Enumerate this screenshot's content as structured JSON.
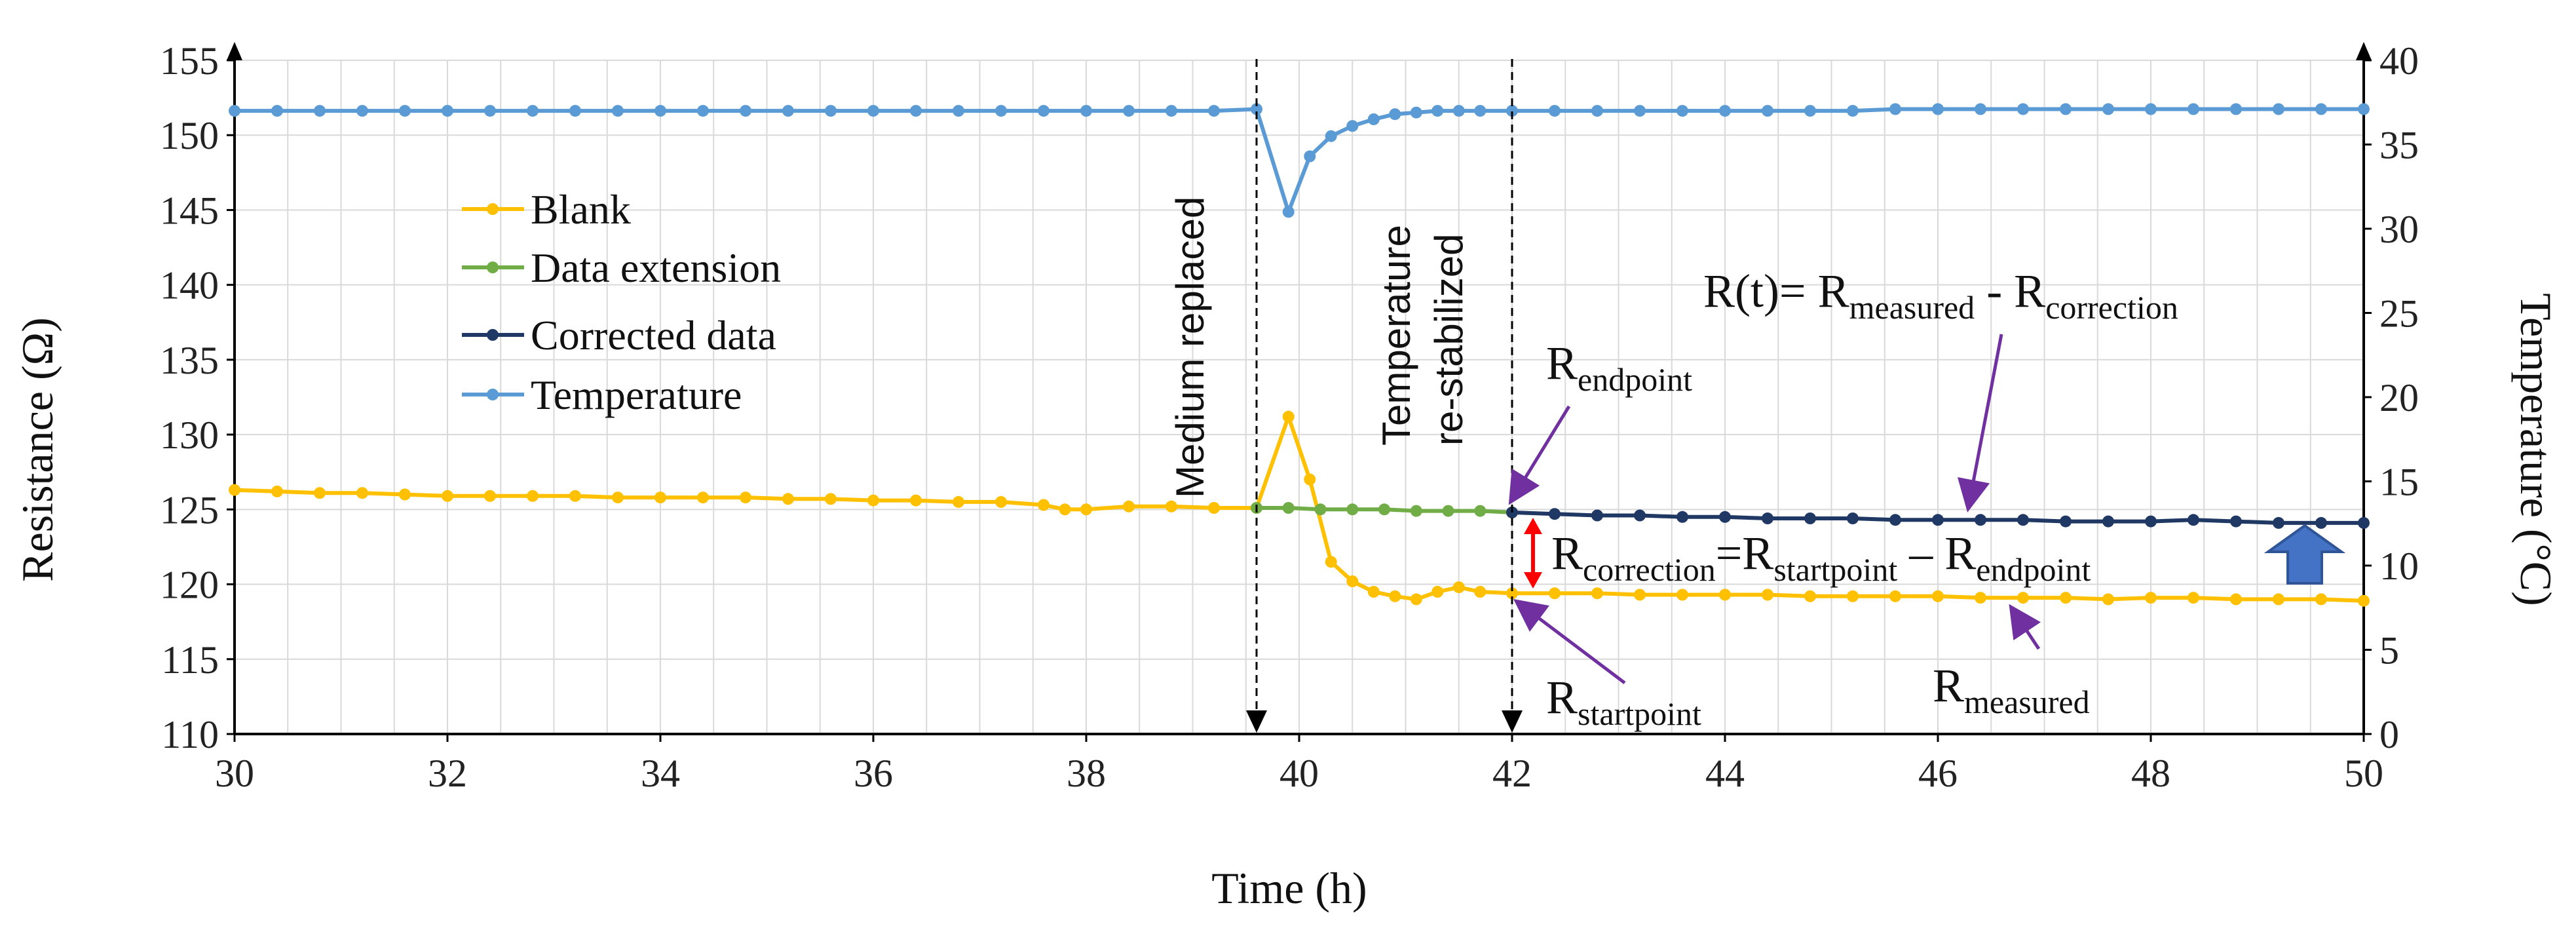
{
  "chart_data": {
    "type": "line",
    "title": "",
    "xlabel": "Time (h)",
    "ylabel_left": "Resistance (Ω)",
    "ylabel_right": "Temperature (°C)",
    "xlim": [
      30,
      50
    ],
    "ylim_left": [
      110,
      155
    ],
    "ylim_right": [
      0,
      40
    ],
    "x_ticks": [
      30,
      32,
      34,
      36,
      38,
      40,
      42,
      44,
      46,
      48,
      50
    ],
    "y_ticks_left": [
      110,
      115,
      120,
      125,
      130,
      135,
      140,
      145,
      150,
      155
    ],
    "y_ticks_right": [
      0,
      5,
      10,
      15,
      20,
      25,
      30,
      35,
      40
    ],
    "grid": true,
    "legend": [
      "Blank",
      "Data extension",
      "Corrected data",
      "Temperature"
    ],
    "series": [
      {
        "name": "Blank",
        "axis": "left",
        "color": "#FFC000",
        "x": [
          30,
          30.4,
          30.8,
          31.2,
          31.6,
          32.0,
          32.4,
          32.8,
          33.2,
          33.6,
          34.0,
          34.4,
          34.8,
          35.2,
          35.6,
          36.0,
          36.4,
          36.8,
          37.2,
          37.6,
          37.8,
          38.0,
          38.4,
          38.8,
          39.2,
          39.6,
          39.9,
          40.1,
          40.3,
          40.5,
          40.7,
          40.9,
          41.1,
          41.3,
          41.5,
          41.7,
          42.0,
          42.4,
          42.8,
          43.2,
          43.6,
          44.0,
          44.4,
          44.8,
          45.2,
          45.6,
          46.0,
          46.4,
          46.8,
          47.2,
          47.6,
          48.0,
          48.4,
          48.8,
          49.2,
          49.6,
          50.0
        ],
        "values": [
          126.3,
          126.2,
          126.1,
          126.1,
          126.0,
          125.9,
          125.9,
          125.9,
          125.9,
          125.8,
          125.8,
          125.8,
          125.8,
          125.7,
          125.7,
          125.6,
          125.6,
          125.5,
          125.5,
          125.3,
          125.0,
          125.0,
          125.2,
          125.2,
          125.1,
          125.1,
          131.2,
          127.0,
          121.5,
          120.2,
          119.5,
          119.2,
          119.0,
          119.5,
          119.8,
          119.5,
          119.4,
          119.4,
          119.4,
          119.3,
          119.3,
          119.3,
          119.3,
          119.2,
          119.2,
          119.2,
          119.2,
          119.1,
          119.1,
          119.1,
          119.0,
          119.1,
          119.1,
          119.0,
          119.0,
          119.0,
          118.9
        ]
      },
      {
        "name": "Data extension",
        "axis": "left",
        "color": "#70AD47",
        "x": [
          39.6,
          39.9,
          40.2,
          40.5,
          40.8,
          41.1,
          41.4,
          41.7,
          42.0
        ],
        "values": [
          125.1,
          125.1,
          125.0,
          125.0,
          125.0,
          124.9,
          124.9,
          124.9,
          124.8
        ]
      },
      {
        "name": "Corrected data",
        "axis": "left",
        "color": "#203864",
        "x": [
          42.0,
          42.4,
          42.8,
          43.2,
          43.6,
          44.0,
          44.4,
          44.8,
          45.2,
          45.6,
          46.0,
          46.4,
          46.8,
          47.2,
          47.6,
          48.0,
          48.4,
          48.8,
          49.2,
          49.6,
          50.0
        ],
        "values": [
          124.8,
          124.7,
          124.6,
          124.6,
          124.5,
          124.5,
          124.4,
          124.4,
          124.4,
          124.3,
          124.3,
          124.3,
          124.3,
          124.2,
          124.2,
          124.2,
          124.3,
          124.2,
          124.1,
          124.1,
          124.1
        ]
      },
      {
        "name": "Temperature",
        "axis": "right",
        "color": "#5B9BD5",
        "x": [
          30,
          30.4,
          30.8,
          31.2,
          31.6,
          32.0,
          32.4,
          32.8,
          33.2,
          33.6,
          34.0,
          34.4,
          34.8,
          35.2,
          35.6,
          36.0,
          36.4,
          36.8,
          37.2,
          37.6,
          38.0,
          38.4,
          38.8,
          39.2,
          39.6,
          39.9,
          40.1,
          40.3,
          40.5,
          40.7,
          40.9,
          41.1,
          41.3,
          41.5,
          41.7,
          42.0,
          42.4,
          42.8,
          43.2,
          43.6,
          44.0,
          44.4,
          44.8,
          45.2,
          45.6,
          46.0,
          46.4,
          46.8,
          47.2,
          47.6,
          48.0,
          48.4,
          48.8,
          49.2,
          49.6,
          50.0
        ],
        "values": [
          37.0,
          37.0,
          37.0,
          37.0,
          37.0,
          37.0,
          37.0,
          37.0,
          37.0,
          37.0,
          37.0,
          37.0,
          37.0,
          37.0,
          37.0,
          37.0,
          37.0,
          37.0,
          37.0,
          37.0,
          37.0,
          37.0,
          37.0,
          37.0,
          37.1,
          31.0,
          34.3,
          35.5,
          36.1,
          36.5,
          36.8,
          36.9,
          37.0,
          37.0,
          37.0,
          37.0,
          37.0,
          37.0,
          37.0,
          37.0,
          37.0,
          37.0,
          37.0,
          37.0,
          37.1,
          37.1,
          37.1,
          37.1,
          37.1,
          37.1,
          37.1,
          37.1,
          37.1,
          37.1,
          37.1,
          37.1
        ]
      }
    ],
    "vlines": [
      {
        "x": 39.6,
        "label": "Medium replaced"
      },
      {
        "x": 42.0,
        "label_line1": "Temperature",
        "label_line2": "re-stabilized"
      }
    ],
    "annotations": {
      "equation": {
        "prefix": "R(t)= R",
        "sub1": "measured",
        "mid": " - R",
        "sub2": "correction"
      },
      "endpoint": {
        "main": "R",
        "sub": "endpoint"
      },
      "correction": {
        "main1": "R",
        "sub1": "correction",
        "mid1": "=R",
        "sub2": "startpoint",
        "mid2": " – R",
        "sub3": "endpoint"
      },
      "startpoint": {
        "main": "R",
        "sub": "startpoint"
      },
      "measured": {
        "main": "R",
        "sub": "measured"
      }
    }
  }
}
